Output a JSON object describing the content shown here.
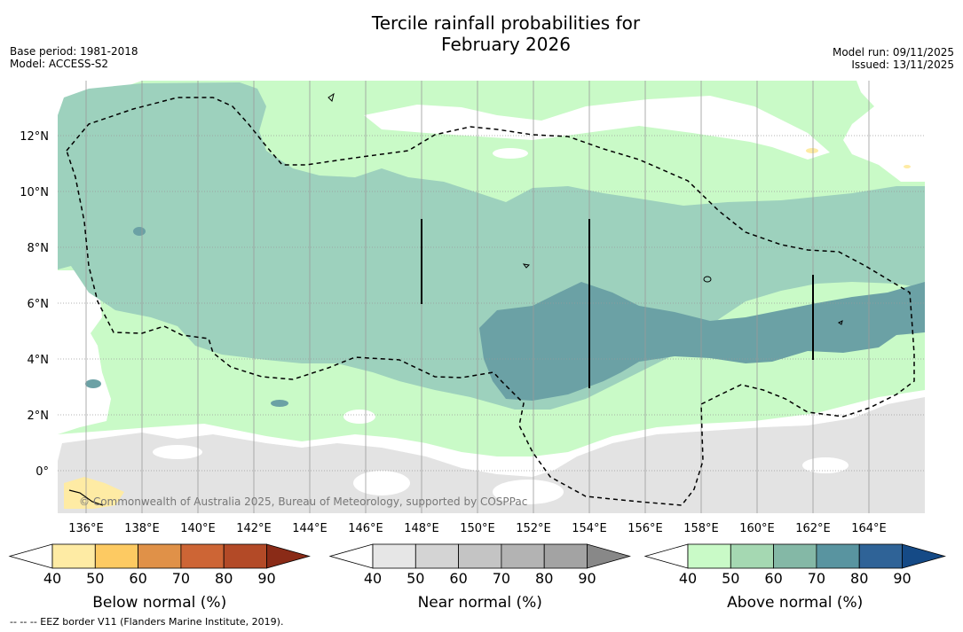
{
  "title_line1": "Tercile rainfall probabilities for",
  "title_line2": "February 2026",
  "info_left": {
    "base_period": "Base period: 1981-2018",
    "model": "Model: ACCESS-S2"
  },
  "info_right": {
    "model_run": "Model run: 09/11/2025",
    "issued": "Issued: 13/11/2025"
  },
  "map": {
    "lon_labels": [
      "136°E",
      "138°E",
      "140°E",
      "142°E",
      "144°E",
      "146°E",
      "148°E",
      "150°E",
      "152°E",
      "154°E",
      "156°E",
      "158°E",
      "160°E",
      "162°E",
      "164°E"
    ],
    "lat_labels": [
      "12°N",
      "10°N",
      "8°N",
      "6°N",
      "4°N",
      "2°N",
      "0°"
    ],
    "copyright": "© Commonwealth of Australia 2025, Bureau of Meteorology, supported by COSPPac"
  },
  "colorbars": [
    {
      "title": "Below normal (%)",
      "ticks": [
        "40",
        "50",
        "60",
        "70",
        "80",
        "90"
      ],
      "colors": [
        "#ffffff",
        "#feeba4",
        "#fdca62",
        "#e09148",
        "#cd6535",
        "#b34a27",
        "#8a2b17"
      ]
    },
    {
      "title": "Near normal (%)",
      "ticks": [
        "40",
        "50",
        "60",
        "70",
        "80",
        "90"
      ],
      "colors": [
        "#ffffff",
        "#e6e6e6",
        "#d4d4d4",
        "#c4c4c4",
        "#b3b3b3",
        "#a3a3a3",
        "#888888"
      ]
    },
    {
      "title": "Above normal (%)",
      "ticks": [
        "40",
        "50",
        "60",
        "70",
        "80",
        "90"
      ],
      "colors": [
        "#ffffff",
        "#c9fac7",
        "#a5d8b2",
        "#84b8a6",
        "#5994a0",
        "#2f6397",
        "#154a86"
      ]
    }
  ],
  "footer": "--  --  -- EEZ border V11 (Flanders Marine Institute, 2019).",
  "colors": {
    "light_green": "#c9fac7",
    "mid_green": "#9dd1bd",
    "dark_teal": "#6ba1a5",
    "grey": "#e3e3e3",
    "yellow": "#feeba4"
  }
}
